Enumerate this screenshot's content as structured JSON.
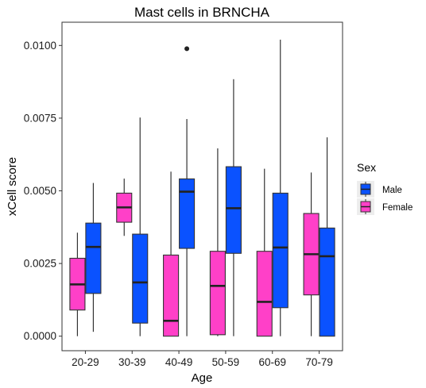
{
  "chart_data": {
    "type": "box",
    "title": "Mast cells in BRNCHA",
    "xlabel": "Age",
    "ylabel": "xCell score",
    "categories": [
      "20-29",
      "30-39",
      "40-49",
      "50-59",
      "60-69",
      "70-79"
    ],
    "yticks": [
      "0.0000",
      "0.0025",
      "0.0050",
      "0.0075",
      "0.0100"
    ],
    "ylim": [
      -0.0005,
      0.0108
    ],
    "grid": false,
    "legend": {
      "title": "Sex",
      "position": "right",
      "entries": [
        {
          "name": "Male",
          "color": "#0a52ff"
        },
        {
          "name": "Female",
          "color": "#ff40c8"
        }
      ]
    },
    "series": [
      {
        "name": "Female",
        "color": "#ff40c8",
        "boxes": [
          {
            "min": 0.0,
            "q1": 0.0009,
            "median": 0.00178,
            "q3": 0.00268,
            "max": 0.00356,
            "outliers": []
          },
          {
            "min": 0.00345,
            "q1": 0.00392,
            "median": 0.00443,
            "q3": 0.00492,
            "max": 0.00542,
            "outliers": []
          },
          {
            "min": 0.0,
            "q1": 0.0,
            "median": 0.00053,
            "q3": 0.00279,
            "max": 0.00566,
            "outliers": []
          },
          {
            "min": 0.0,
            "q1": 5e-05,
            "median": 0.00173,
            "q3": 0.00292,
            "max": 0.00646,
            "outliers": []
          },
          {
            "min": 0.0,
            "q1": 0.0,
            "median": 0.00118,
            "q3": 0.00292,
            "max": 0.00576,
            "outliers": []
          },
          {
            "min": 0.0,
            "q1": 0.00142,
            "median": 0.00282,
            "q3": 0.00422,
            "max": 0.00563,
            "outliers": []
          }
        ]
      },
      {
        "name": "Male",
        "color": "#0a52ff",
        "boxes": [
          {
            "min": 0.00015,
            "q1": 0.00147,
            "median": 0.00307,
            "q3": 0.00389,
            "max": 0.00527,
            "outliers": []
          },
          {
            "min": 0.0,
            "q1": 0.00045,
            "median": 0.00185,
            "q3": 0.00351,
            "max": 0.00752,
            "outliers": []
          },
          {
            "min": 0.0,
            "q1": 0.00302,
            "median": 0.00497,
            "q3": 0.00541,
            "max": 0.00747,
            "outliers": [
              0.00989
            ]
          },
          {
            "min": 0.0,
            "q1": 0.00285,
            "median": 0.0044,
            "q3": 0.00583,
            "max": 0.00884,
            "outliers": []
          },
          {
            "min": 0.0,
            "q1": 0.00098,
            "median": 0.00305,
            "q3": 0.00492,
            "max": 0.0102,
            "outliers": []
          },
          {
            "min": 0.0,
            "q1": 0.0,
            "median": 0.00275,
            "q3": 0.00372,
            "max": 0.00684,
            "outliers": []
          }
        ]
      }
    ]
  }
}
